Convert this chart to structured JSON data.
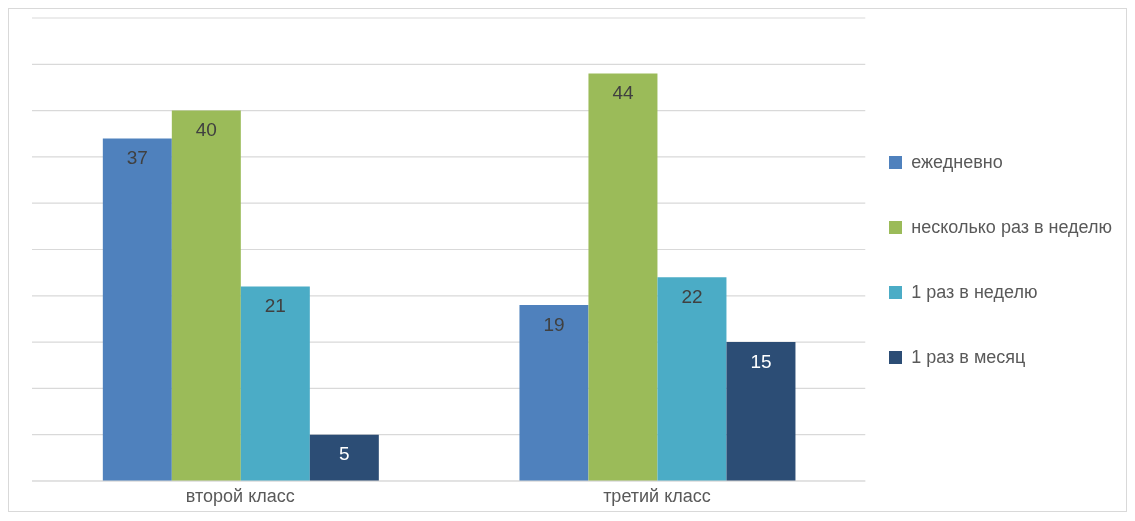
{
  "chart_data": {
    "type": "bar",
    "categories": [
      "второй класс",
      "третий класс"
    ],
    "series": [
      {
        "name": "ежедневно",
        "color": "#4f81bd",
        "values": [
          37,
          19
        ]
      },
      {
        "name": "несколько раз в неделю",
        "color": "#9bbb59",
        "values": [
          40,
          44
        ]
      },
      {
        "name": "1 раз в неделю",
        "color": "#4bacc6",
        "values": [
          21,
          22
        ]
      },
      {
        "name": "1 раз в месяц",
        "color": "#2c4d75",
        "values": [
          5,
          15
        ]
      }
    ],
    "ylim": [
      0,
      50
    ],
    "tick_labels": "x",
    "grid": "y",
    "legend": "right",
    "data_labels": true
  }
}
